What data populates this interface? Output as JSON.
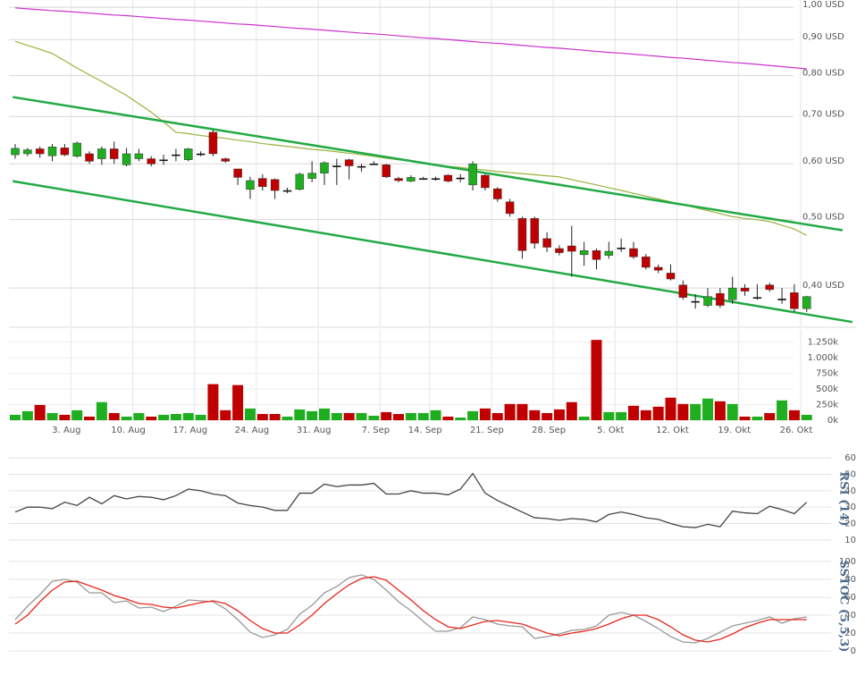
{
  "chart_data": [
    {
      "type": "candlestick",
      "log_scale": true,
      "grid": true,
      "ylim": [
        0.353,
        1.024
      ],
      "yticks": [
        {
          "value": 1.0,
          "label": "1,00 USD"
        },
        {
          "value": 0.9,
          "label": "0,90 USD"
        },
        {
          "value": 0.8,
          "label": "0,80 USD"
        },
        {
          "value": 0.7,
          "label": "0,70 USD"
        },
        {
          "value": 0.6,
          "label": "0,60 USD"
        },
        {
          "value": 0.5,
          "label": "0,50 USD"
        },
        {
          "value": 0.4,
          "label": "0,40 USD"
        }
      ],
      "up_color": "#1fae1f",
      "down_color": "#c00000",
      "flat_color": "#000000",
      "open": [
        0.618,
        0.62,
        0.63,
        0.616,
        0.632,
        0.615,
        0.62,
        0.61,
        0.63,
        0.598,
        0.61,
        0.61,
        0.608,
        0.618,
        0.608,
        0.62,
        0.665,
        0.61,
        0.59,
        0.552,
        0.572,
        0.57,
        0.55,
        0.552,
        0.572,
        0.582,
        0.596,
        0.608,
        0.595,
        0.6,
        0.598,
        0.572,
        0.567,
        0.572,
        0.572,
        0.578,
        0.573,
        0.56,
        0.578,
        0.553,
        0.53,
        0.502,
        0.502,
        0.47,
        0.455,
        0.459,
        0.446,
        0.452,
        0.445,
        0.456,
        0.455,
        0.443,
        0.428,
        0.42,
        0.404,
        0.383,
        0.378,
        0.393,
        0.385,
        0.4,
        0.388,
        0.404,
        0.386,
        0.394,
        0.374
      ],
      "high": [
        0.64,
        0.632,
        0.635,
        0.64,
        0.64,
        0.645,
        0.625,
        0.635,
        0.645,
        0.632,
        0.63,
        0.615,
        0.618,
        0.63,
        0.632,
        0.625,
        0.67,
        0.612,
        0.59,
        0.575,
        0.58,
        0.572,
        0.555,
        0.583,
        0.605,
        0.605,
        0.61,
        0.61,
        0.6,
        0.605,
        0.6,
        0.575,
        0.578,
        0.575,
        0.575,
        0.58,
        0.58,
        0.605,
        0.58,
        0.556,
        0.535,
        0.505,
        0.505,
        0.48,
        0.46,
        0.49,
        0.465,
        0.455,
        0.465,
        0.47,
        0.465,
        0.447,
        0.432,
        0.432,
        0.41,
        0.392,
        0.4,
        0.4,
        0.415,
        0.405,
        0.405,
        0.407,
        0.4,
        0.405,
        0.39
      ],
      "low": [
        0.61,
        0.615,
        0.612,
        0.605,
        0.615,
        0.612,
        0.6,
        0.598,
        0.6,
        0.595,
        0.605,
        0.595,
        0.598,
        0.605,
        0.605,
        0.615,
        0.615,
        0.602,
        0.56,
        0.535,
        0.55,
        0.535,
        0.545,
        0.55,
        0.565,
        0.56,
        0.56,
        0.57,
        0.585,
        0.598,
        0.573,
        0.565,
        0.565,
        0.57,
        0.568,
        0.565,
        0.565,
        0.55,
        0.55,
        0.53,
        0.505,
        0.44,
        0.455,
        0.45,
        0.445,
        0.415,
        0.43,
        0.425,
        0.44,
        0.45,
        0.44,
        0.425,
        0.42,
        0.41,
        0.385,
        0.374,
        0.376,
        0.375,
        0.38,
        0.39,
        0.385,
        0.395,
        0.38,
        0.37,
        0.37
      ],
      "close": [
        0.631,
        0.628,
        0.62,
        0.634,
        0.618,
        0.642,
        0.605,
        0.63,
        0.61,
        0.62,
        0.62,
        0.6,
        0.608,
        0.618,
        0.63,
        0.62,
        0.62,
        0.605,
        0.574,
        0.568,
        0.557,
        0.55,
        0.55,
        0.58,
        0.582,
        0.602,
        0.596,
        0.596,
        0.595,
        0.6,
        0.575,
        0.568,
        0.574,
        0.572,
        0.572,
        0.567,
        0.573,
        0.6,
        0.555,
        0.535,
        0.51,
        0.452,
        0.463,
        0.457,
        0.449,
        0.451,
        0.452,
        0.439,
        0.451,
        0.456,
        0.443,
        0.428,
        0.424,
        0.412,
        0.388,
        0.383,
        0.389,
        0.378,
        0.4,
        0.396,
        0.388,
        0.398,
        0.386,
        0.374,
        0.389
      ],
      "lines": [
        {
          "color": "#cc33cc",
          "values": [
            0.998,
            0.995,
            0.992,
            0.989,
            0.987,
            0.984,
            0.981,
            0.978,
            0.975,
            0.973,
            0.97,
            0.967,
            0.964,
            0.961,
            0.959,
            0.956,
            0.953,
            0.95,
            0.947,
            0.945,
            0.942,
            0.939,
            0.936,
            0.933,
            0.931,
            0.928,
            0.925,
            0.922,
            0.919,
            0.917,
            0.914,
            0.911,
            0.908,
            0.905,
            0.903,
            0.9,
            0.897,
            0.894,
            0.891,
            0.889,
            0.886,
            0.883,
            0.88,
            0.877,
            0.875,
            0.872,
            0.869,
            0.866,
            0.863,
            0.861,
            0.858,
            0.855,
            0.852,
            0.849,
            0.847,
            0.844,
            0.841,
            0.838,
            0.835,
            0.833,
            0.83,
            0.827,
            0.824,
            0.821,
            0.818
          ]
        },
        {
          "color": "#99b33a",
          "values": [
            0.895,
            0.883,
            0.872,
            0.86,
            0.84,
            0.82,
            0.802,
            0.785,
            0.767,
            0.75,
            0.73,
            0.71,
            0.688,
            0.665,
            0.662,
            0.658,
            0.655,
            0.652,
            0.648,
            0.645,
            0.641,
            0.638,
            0.635,
            0.632,
            0.629,
            0.627,
            0.624,
            0.621,
            0.618,
            0.615,
            0.611,
            0.608,
            0.605,
            0.601,
            0.598,
            0.595,
            0.593,
            0.59,
            0.588,
            0.585,
            0.583,
            0.581,
            0.579,
            0.577,
            0.575,
            0.57,
            0.565,
            0.56,
            0.555,
            0.55,
            0.545,
            0.54,
            0.535,
            0.53,
            0.525,
            0.52,
            0.515,
            0.51,
            0.505,
            0.502,
            0.5,
            0.497,
            0.491,
            0.485,
            0.475
          ]
        }
      ],
      "trendlines": [
        {
          "color": "#22aa44",
          "x": [
            -0.2,
            66.9
          ],
          "values": [
            0.746,
            0.483
          ]
        },
        {
          "color": "#22aa44",
          "x": [
            -0.2,
            67.7
          ],
          "values": [
            0.567,
            0.358
          ]
        }
      ]
    },
    {
      "type": "bar",
      "grid": true,
      "categories": [
        null,
        null,
        null,
        null,
        "3. Aug",
        null,
        null,
        null,
        null,
        "10. Aug",
        null,
        null,
        null,
        null,
        "17. Aug",
        null,
        null,
        null,
        null,
        "24. Aug",
        null,
        null,
        null,
        null,
        "31. Aug",
        null,
        null,
        null,
        null,
        "7. Sep",
        null,
        null,
        null,
        "14. Sep",
        null,
        null,
        null,
        null,
        "21. Sep",
        null,
        null,
        null,
        null,
        "28. Sep",
        null,
        null,
        null,
        null,
        "5. Okt",
        null,
        null,
        null,
        null,
        "12. Okt",
        null,
        null,
        null,
        null,
        "19. Okt",
        null,
        null,
        null,
        null,
        "26. Okt",
        null
      ],
      "values": [
        87,
        145,
        245,
        115,
        87,
        160,
        58,
        290,
        115,
        58,
        115,
        58,
        87,
        100,
        115,
        87,
        578,
        160,
        563,
        188,
        100,
        100,
        58,
        173,
        145,
        188,
        115,
        115,
        115,
        72,
        130,
        100,
        115,
        115,
        160,
        58,
        43,
        145,
        188,
        115,
        260,
        260,
        160,
        115,
        173,
        290,
        58,
        1286,
        130,
        130,
        231,
        160,
        217,
        361,
        260,
        260,
        347,
        303,
        260,
        58,
        58,
        115,
        318,
        160,
        87
      ],
      "ylim": [
        0,
        1460
      ],
      "yticks": [
        {
          "value": 1250,
          "label": "1.250k"
        },
        {
          "value": 1000,
          "label": "1.000k"
        },
        {
          "value": 750,
          "label": "750k"
        },
        {
          "value": 500,
          "label": "500k"
        },
        {
          "value": 250,
          "label": "250k"
        },
        {
          "value": 0,
          "label": "0k"
        }
      ]
    },
    {
      "type": "line",
      "ylabel": "RSI (14)",
      "grid": true,
      "color": "#444444",
      "ylim": [
        5,
        65
      ],
      "yticks": [
        60,
        50,
        40,
        30,
        20,
        10
      ],
      "series": [
        {
          "color": "#444444",
          "values": [
            27,
            30,
            30,
            29,
            33,
            31,
            36,
            32,
            37,
            35,
            36.5,
            36,
            34.5,
            37,
            41,
            40,
            38,
            37,
            32.5,
            31,
            30,
            28,
            28,
            38.5,
            38.5,
            44,
            42.5,
            43.5,
            43.5,
            44.5,
            38,
            38,
            40,
            38.5,
            38.5,
            37.5,
            41,
            50.5,
            38.5,
            34,
            30.5,
            27,
            23.5,
            23,
            22,
            23,
            22.5,
            21,
            25.5,
            27,
            25.5,
            23.5,
            22.5,
            20,
            18,
            17.5,
            19.5,
            18,
            27.5,
            26.5,
            26,
            30.5,
            28.5,
            26,
            33
          ]
        }
      ]
    },
    {
      "type": "line",
      "ylabel": "SSTOC (5,5,3)",
      "grid": true,
      "ylim": [
        -5,
        105
      ],
      "yticks": [
        100,
        80,
        60,
        40,
        20,
        0
      ],
      "series": [
        {
          "color": "#999999",
          "values": [
            35,
            50,
            63,
            78,
            80,
            77,
            65,
            65,
            54,
            56,
            48,
            49,
            44,
            50,
            57,
            56,
            55,
            47,
            35,
            21,
            15,
            18,
            24,
            41,
            51,
            65,
            72,
            82,
            85,
            80,
            68,
            55,
            45,
            33,
            22,
            22,
            26,
            38,
            35,
            30,
            28,
            27,
            14,
            16,
            19,
            23,
            24,
            28,
            40,
            43,
            40,
            33,
            25,
            16,
            10,
            9,
            14,
            21,
            28,
            31,
            34,
            38,
            31,
            36,
            38
          ]
        },
        {
          "color": "#e8261c",
          "values": [
            30,
            40,
            55,
            68,
            77,
            78,
            73,
            68,
            62,
            58,
            53,
            52,
            49,
            48,
            51,
            54,
            56,
            53,
            45,
            34,
            25,
            20,
            20,
            29,
            40,
            53,
            64,
            74,
            81,
            83,
            79,
            68,
            57,
            45,
            35,
            27,
            25,
            29,
            33,
            34,
            32,
            30,
            25,
            20,
            17,
            20,
            22,
            25,
            30,
            36,
            40,
            40,
            35,
            27,
            18,
            12,
            10,
            13,
            19,
            26,
            31,
            35,
            35,
            35,
            35
          ]
        }
      ]
    }
  ]
}
